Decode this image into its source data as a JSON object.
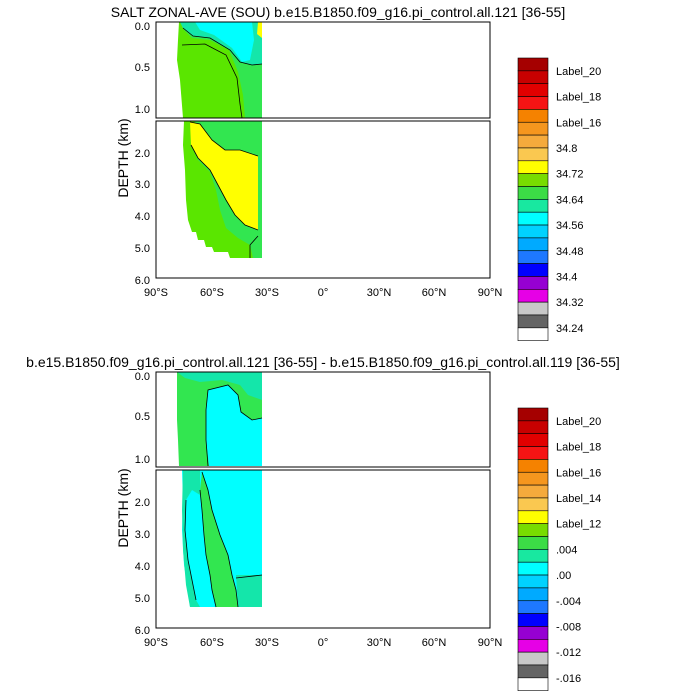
{
  "chart_data": [
    {
      "type": "heatmap",
      "title": "SALT ZONAL-AVE (SOU) b.e15.B1850.f09_g16.pi_control.all.121 [36-55]",
      "ylabel": "DEPTH (km)",
      "xlabel": "",
      "x_ticks": [
        "90°S",
        "60°S",
        "30°S",
        "0°",
        "30°N",
        "60°N",
        "90°N"
      ],
      "xlim": [
        -90,
        90
      ],
      "y_ticks_upper": [
        "0.0",
        "0.5",
        "1.0"
      ],
      "y_ticks_lower": [
        "2.0",
        "3.0",
        "4.0",
        "5.0",
        "6.0"
      ],
      "ylim_upper": [
        0,
        1.15
      ],
      "ylim_lower": [
        1.15,
        6.0
      ],
      "legend_labels": [
        "Label_20",
        "Label_18",
        "Label_16",
        "34.8",
        "34.72",
        "34.64",
        "34.56",
        "34.48",
        "34.4",
        "34.32",
        "34.24"
      ],
      "legend_placement": "right"
    },
    {
      "type": "heatmap",
      "title": "b.e15.B1850.f09_g16.pi_control.all.121 [36-55] - b.e15.B1850.f09_g16.pi_control.all.119 [36-55]",
      "ylabel": "DEPTH (km)",
      "xlabel": "",
      "x_ticks": [
        "90°S",
        "60°S",
        "30°S",
        "0°",
        "30°N",
        "60°N",
        "90°N"
      ],
      "xlim": [
        -90,
        90
      ],
      "y_ticks_upper": [
        "0.0",
        "0.5",
        "1.0"
      ],
      "y_ticks_lower": [
        "2.0",
        "3.0",
        "4.0",
        "5.0",
        "6.0"
      ],
      "ylim_upper": [
        0,
        1.15
      ],
      "ylim_lower": [
        1.15,
        6.0
      ],
      "legend_labels": [
        "Label_20",
        "Label_18",
        "Label_16",
        "Label_14",
        "Label_12",
        ".004",
        ".00",
        "-.004",
        "-.008",
        "-.012",
        "-.016"
      ],
      "legend_placement": "right"
    }
  ],
  "palette": [
    "#a50000",
    "#c80000",
    "#e10000",
    "#f51414",
    "#f58200",
    "#f5961e",
    "#f5aa3c",
    "#fac850",
    "#ffff00",
    "#78dc00",
    "#3cdc46",
    "#18e8a0",
    "#00ffff",
    "#00d2ff",
    "#00aaff",
    "#1e78ff",
    "#0000ff",
    "#9600d2",
    "#e600e6",
    "#c8c8c8",
    "#646464",
    "#ffffff"
  ],
  "colors": {
    "salt_green": "#5ae600",
    "salt_light_green": "#32e650",
    "salt_teal": "#14e6aa",
    "salt_cyan": "#00ffff",
    "salt_yellow": "#ffff00",
    "diff_green": "#32e650",
    "diff_teal": "#14e6aa",
    "diff_cyan": "#00ffff"
  }
}
